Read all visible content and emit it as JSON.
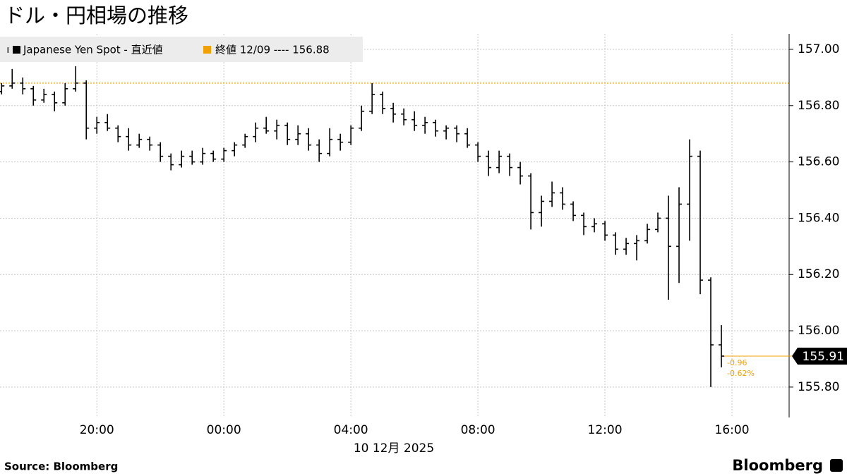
{
  "chart_data": {
    "type": "ohlc",
    "title": "ドル・円相場の推移",
    "source": "Source: Bloomberg",
    "logo": "Bloomberg",
    "date_label": "10 12月 2025",
    "x": [
      -420,
      -400,
      -380,
      -360,
      -340,
      -320,
      -300,
      -280,
      -260,
      -240,
      -220,
      -200,
      -180,
      -160,
      -140,
      -120,
      -100,
      -80,
      -60,
      -40,
      -20,
      0,
      20,
      40,
      60,
      80,
      100,
      120,
      140,
      160,
      180,
      200,
      220,
      240,
      260,
      280,
      300,
      320,
      340,
      360,
      380,
      400,
      420,
      440,
      460,
      480,
      500,
      520,
      540,
      560,
      580,
      600,
      620,
      640,
      660,
      680,
      700,
      720,
      740,
      760,
      780,
      800,
      820,
      840,
      860,
      880,
      900,
      920,
      940
    ],
    "xlim": [
      -423,
      1068
    ],
    "xticks": [
      {
        "value": -240,
        "label": "20:00"
      },
      {
        "value": 0,
        "label": "00:00"
      },
      {
        "value": 240,
        "label": "04:00"
      },
      {
        "value": 480,
        "label": "08:00"
      },
      {
        "value": 720,
        "label": "12:00"
      },
      {
        "value": 960,
        "label": "16:00"
      }
    ],
    "ylim": [
      155.692,
      157.055
    ],
    "yticks": [
      {
        "value": 157,
        "label": "157.00"
      },
      {
        "value": 156.8,
        "label": "156.80"
      },
      {
        "value": 156.6,
        "label": "156.60"
      },
      {
        "value": 156.4,
        "label": "156.40"
      },
      {
        "value": 156.2,
        "label": "156.20"
      },
      {
        "value": 156,
        "label": "156.00"
      },
      {
        "value": 155.8,
        "label": "155.80"
      }
    ],
    "grid": true,
    "series": [
      {
        "name": "Japanese Yen Spot - 直近値",
        "color": "#000000",
        "open": [
          156.85,
          156.87,
          156.88,
          156.86,
          156.82,
          156.84,
          156.81,
          156.86,
          156.88,
          156.72,
          156.74,
          156.72,
          156.69,
          156.66,
          156.68,
          156.66,
          156.62,
          156.59,
          156.62,
          156.6,
          156.63,
          156.61,
          156.64,
          156.66,
          156.69,
          156.72,
          156.71,
          156.73,
          156.68,
          156.7,
          156.66,
          156.63,
          156.68,
          156.67,
          156.72,
          156.78,
          156.84,
          156.79,
          156.77,
          156.75,
          156.73,
          156.74,
          156.71,
          156.72,
          156.7,
          156.66,
          156.62,
          156.58,
          156.62,
          156.58,
          156.55,
          156.42,
          156.46,
          156.49,
          156.45,
          156.41,
          156.37,
          156.38,
          156.34,
          156.29,
          156.31,
          156.32,
          156.36,
          156.4,
          156.3,
          156.45,
          156.62,
          156.18,
          155.95
        ],
        "high": [
          156.88,
          156.93,
          156.9,
          156.87,
          156.86,
          156.85,
          156.88,
          156.94,
          156.89,
          156.76,
          156.77,
          156.73,
          156.72,
          156.7,
          156.69,
          156.67,
          156.63,
          156.64,
          156.64,
          156.65,
          156.64,
          156.65,
          156.67,
          156.7,
          156.74,
          156.76,
          156.75,
          156.74,
          156.73,
          156.72,
          156.68,
          156.72,
          156.7,
          156.73,
          156.8,
          156.88,
          156.85,
          156.81,
          156.79,
          156.78,
          156.76,
          156.75,
          156.73,
          156.73,
          156.72,
          156.67,
          156.64,
          156.64,
          156.63,
          156.6,
          156.56,
          156.48,
          156.53,
          156.51,
          156.46,
          156.42,
          156.4,
          156.39,
          156.35,
          156.33,
          156.34,
          156.38,
          156.42,
          156.48,
          156.51,
          156.68,
          156.64,
          156.19,
          156.02
        ],
        "low": [
          156.84,
          156.86,
          156.84,
          156.8,
          156.81,
          156.78,
          156.8,
          156.85,
          156.68,
          156.7,
          156.71,
          156.67,
          156.64,
          156.65,
          156.64,
          156.6,
          156.57,
          156.58,
          156.59,
          156.59,
          156.6,
          156.6,
          156.62,
          156.65,
          156.67,
          156.7,
          156.68,
          156.66,
          156.66,
          156.64,
          156.6,
          156.62,
          156.64,
          156.66,
          156.71,
          156.77,
          156.77,
          156.74,
          156.73,
          156.71,
          156.7,
          156.69,
          156.68,
          156.67,
          156.65,
          156.6,
          156.55,
          156.56,
          156.55,
          156.52,
          156.36,
          156.37,
          156.44,
          156.43,
          156.39,
          156.34,
          156.35,
          156.32,
          156.27,
          156.27,
          156.25,
          156.31,
          156.35,
          156.11,
          156.17,
          156.32,
          156.13,
          155.8,
          155.87
        ],
        "close": [
          156.87,
          156.88,
          156.86,
          156.82,
          156.84,
          156.81,
          156.86,
          156.88,
          156.72,
          156.74,
          156.72,
          156.69,
          156.66,
          156.68,
          156.66,
          156.62,
          156.59,
          156.62,
          156.6,
          156.63,
          156.61,
          156.64,
          156.66,
          156.69,
          156.72,
          156.71,
          156.73,
          156.68,
          156.7,
          156.66,
          156.63,
          156.68,
          156.67,
          156.72,
          156.78,
          156.84,
          156.79,
          156.77,
          156.75,
          156.73,
          156.74,
          156.71,
          156.72,
          156.7,
          156.66,
          156.62,
          156.58,
          156.62,
          156.58,
          156.55,
          156.42,
          156.46,
          156.49,
          156.45,
          156.41,
          156.37,
          156.38,
          156.34,
          156.29,
          156.31,
          156.32,
          156.36,
          156.4,
          156.3,
          156.45,
          156.62,
          156.18,
          155.95,
          155.91
        ]
      }
    ],
    "reference": {
      "label": "終値 12/09 ---- 156.88",
      "value": 156.88,
      "color": "#f0a000"
    },
    "annotations": [
      "-0.96",
      "-0.62%"
    ]
  }
}
